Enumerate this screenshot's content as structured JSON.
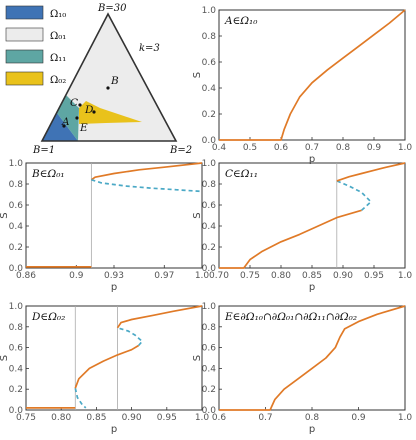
{
  "colors": {
    "omega10": "#3f73b5",
    "omega01": "#ececec",
    "omega11": "#5ea6a3",
    "omega02": "#e9c21b",
    "stable": "#e07a27",
    "unstable": "#4ba9c6",
    "vline": "#aaaaaa",
    "frame": "#333333"
  },
  "diagram": {
    "corner_top": "B=30",
    "corner_left": "B=1",
    "corner_right": "B=2",
    "k_label": "k=3",
    "legend": [
      {
        "key": "omega10",
        "label": "Ω₁₀"
      },
      {
        "key": "omega01",
        "label": "Ω₀₁"
      },
      {
        "key": "omega11",
        "label": "Ω₁₁"
      },
      {
        "key": "omega02",
        "label": "Ω₀₂"
      }
    ],
    "points": [
      "A",
      "B",
      "C",
      "D",
      "E"
    ]
  },
  "chart_data": [
    {
      "id": "A",
      "type": "line",
      "title": "A∈Ω₁₀",
      "xlabel": "p",
      "ylabel": "S",
      "xlim": [
        0.4,
        1.0
      ],
      "ylim": [
        0,
        1.0
      ],
      "xticks": [
        0.4,
        0.5,
        0.6,
        0.7,
        0.8,
        0.9,
        1.0
      ],
      "xtick_labels": [
        "0.4",
        "0.5",
        "0.6",
        "0.7",
        "0.8",
        "0.9",
        "1.0"
      ],
      "yticks": [
        0,
        0.2,
        0.4,
        0.6,
        0.8,
        1.0
      ],
      "ytick_labels": [
        "0.0",
        "0.2",
        "0.4",
        "0.6",
        "0.8",
        "1.0"
      ],
      "series": [
        {
          "style": "stable",
          "points": [
            [
              0.4,
              0
            ],
            [
              0.6,
              0
            ],
            [
              0.61,
              0.08
            ],
            [
              0.63,
              0.2
            ],
            [
              0.66,
              0.33
            ],
            [
              0.7,
              0.44
            ],
            [
              0.75,
              0.54
            ],
            [
              0.8,
              0.63
            ],
            [
              0.85,
              0.72
            ],
            [
              0.9,
              0.81
            ],
            [
              0.95,
              0.9
            ],
            [
              1.0,
              1.0
            ]
          ]
        }
      ],
      "vlines": []
    },
    {
      "id": "B",
      "type": "line",
      "title": "B∈Ω₀₁",
      "xlabel": "p",
      "ylabel": "S",
      "xlim": [
        0.86,
        1.0
      ],
      "ylim": [
        0,
        1.0
      ],
      "xticks": [
        0.86,
        0.9,
        0.93,
        0.97,
        1.0
      ],
      "xtick_labels": [
        "0.86",
        "0.9",
        "0.93",
        "0.97",
        "1.0"
      ],
      "yticks": [
        0,
        0.2,
        0.4,
        0.6,
        0.8,
        1.0
      ],
      "ytick_labels": [
        "0.0",
        "0.2",
        "0.4",
        "0.6",
        "0.8",
        "1.0"
      ],
      "series": [
        {
          "style": "stable",
          "points": [
            [
              0.86,
              0.01
            ],
            [
              0.912,
              0.01
            ]
          ]
        },
        {
          "style": "stable",
          "points": [
            [
              0.912,
              0.84
            ],
            [
              0.915,
              0.865
            ],
            [
              0.93,
              0.9
            ],
            [
              0.95,
              0.935
            ],
            [
              0.97,
              0.96
            ],
            [
              1.0,
              1.0
            ]
          ]
        },
        {
          "style": "unstable",
          "points": [
            [
              0.912,
              0.84
            ],
            [
              0.92,
              0.81
            ],
            [
              0.94,
              0.78
            ],
            [
              0.96,
              0.76
            ],
            [
              0.98,
              0.745
            ],
            [
              1.0,
              0.73
            ]
          ]
        }
      ],
      "vlines": [
        0.912
      ]
    },
    {
      "id": "C",
      "type": "line",
      "title": "C∈Ω₁₁",
      "xlabel": "p",
      "ylabel": "S",
      "xlim": [
        0.7,
        1.0
      ],
      "ylim": [
        0,
        1.0
      ],
      "xticks": [
        0.7,
        0.75,
        0.8,
        0.85,
        0.9,
        0.95,
        1.0
      ],
      "xtick_labels": [
        "0.70",
        "0.75",
        "0.80",
        "0.85",
        "0.90",
        "0.95",
        "1.0"
      ],
      "yticks": [
        0,
        0.2,
        0.4,
        0.6,
        0.8,
        1.0
      ],
      "ytick_labels": [
        "0.0",
        "0.2",
        "0.4",
        "0.6",
        "0.8",
        "1.0"
      ],
      "series": [
        {
          "style": "stable",
          "points": [
            [
              0.7,
              0
            ],
            [
              0.74,
              0
            ],
            [
              0.75,
              0.08
            ],
            [
              0.77,
              0.16
            ],
            [
              0.8,
              0.25
            ],
            [
              0.83,
              0.32
            ],
            [
              0.86,
              0.4
            ],
            [
              0.89,
              0.48
            ],
            [
              0.93,
              0.55
            ]
          ]
        },
        {
          "style": "unstable",
          "points": [
            [
              0.93,
              0.55
            ],
            [
              0.945,
              0.63
            ],
            [
              0.93,
              0.72
            ],
            [
              0.91,
              0.78
            ],
            [
              0.89,
              0.83
            ]
          ]
        },
        {
          "style": "stable",
          "points": [
            [
              0.89,
              0.83
            ],
            [
              0.91,
              0.87
            ],
            [
              0.93,
              0.9
            ],
            [
              0.95,
              0.93
            ],
            [
              0.97,
              0.96
            ],
            [
              1.0,
              1.0
            ]
          ]
        }
      ],
      "vlines": [
        0.89
      ]
    },
    {
      "id": "D",
      "type": "line",
      "title": "D∈Ω₀₂",
      "xlabel": "p",
      "ylabel": "S",
      "xlim": [
        0.75,
        1.0
      ],
      "ylim": [
        0,
        1.0
      ],
      "xticks": [
        0.75,
        0.8,
        0.85,
        0.9,
        0.95,
        1.0
      ],
      "xtick_labels": [
        "0.75",
        "0.80",
        "0.85",
        "0.90",
        "0.95",
        "1.0"
      ],
      "yticks": [
        0,
        0.2,
        0.4,
        0.6,
        0.8,
        1.0
      ],
      "ytick_labels": [
        "0.0",
        "0.2",
        "0.4",
        "0.6",
        "0.8",
        "1.0"
      ],
      "series": [
        {
          "style": "stable",
          "points": [
            [
              0.75,
              0.02
            ],
            [
              0.82,
              0.02
            ]
          ]
        },
        {
          "style": "unstable",
          "points": [
            [
              0.82,
              0.21
            ],
            [
              0.823,
              0.12
            ],
            [
              0.83,
              0.05
            ],
            [
              0.835,
              0.02
            ]
          ]
        },
        {
          "style": "stable",
          "points": [
            [
              0.82,
              0.21
            ],
            [
              0.825,
              0.3
            ],
            [
              0.84,
              0.4
            ],
            [
              0.86,
              0.47
            ],
            [
              0.88,
              0.53
            ],
            [
              0.9,
              0.58
            ],
            [
              0.91,
              0.62
            ]
          ]
        },
        {
          "style": "unstable",
          "points": [
            [
              0.91,
              0.62
            ],
            [
              0.915,
              0.66
            ],
            [
              0.905,
              0.72
            ],
            [
              0.895,
              0.76
            ],
            [
              0.88,
              0.79
            ]
          ]
        },
        {
          "style": "stable",
          "points": [
            [
              0.88,
              0.79
            ],
            [
              0.885,
              0.84
            ],
            [
              0.9,
              0.87
            ],
            [
              0.93,
              0.91
            ],
            [
              0.96,
              0.95
            ],
            [
              1.0,
              1.0
            ]
          ]
        }
      ],
      "vlines": [
        0.82,
        0.88
      ]
    },
    {
      "id": "E",
      "type": "line",
      "title": "E∈∂Ω₁₀∩∂Ω₀₁∩∂Ω₁₁∩∂Ω₀₂",
      "xlabel": "p",
      "ylabel": "S",
      "xlim": [
        0.6,
        1.0
      ],
      "ylim": [
        0,
        1.0
      ],
      "xticks": [
        0.6,
        0.7,
        0.8,
        0.9,
        1.0
      ],
      "xtick_labels": [
        "0.6",
        "0.7",
        "0.8",
        "0.9",
        "1.0"
      ],
      "yticks": [
        0,
        0.2,
        0.4,
        0.6,
        0.8,
        1.0
      ],
      "ytick_labels": [
        "0.0",
        "0.2",
        "0.4",
        "0.6",
        "0.8",
        "1.0"
      ],
      "series": [
        {
          "style": "stable",
          "points": [
            [
              0.6,
              0
            ],
            [
              0.71,
              0
            ],
            [
              0.72,
              0.1
            ],
            [
              0.74,
              0.2
            ],
            [
              0.77,
              0.3
            ],
            [
              0.8,
              0.4
            ],
            [
              0.83,
              0.5
            ],
            [
              0.85,
              0.6
            ],
            [
              0.86,
              0.7
            ],
            [
              0.87,
              0.78
            ],
            [
              0.9,
              0.85
            ],
            [
              0.94,
              0.92
            ],
            [
              1.0,
              1.0
            ]
          ]
        }
      ],
      "vlines": []
    }
  ]
}
